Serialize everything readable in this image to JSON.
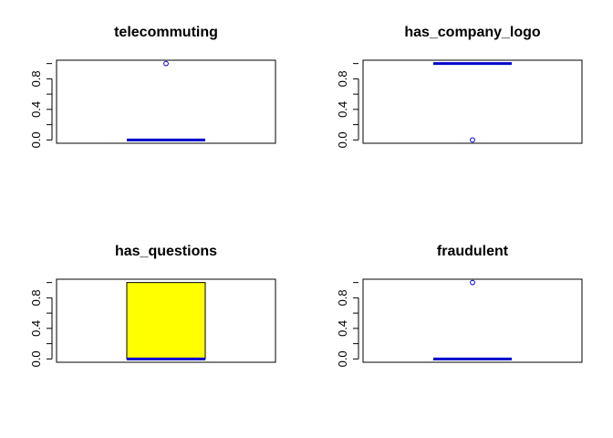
{
  "colors": {
    "box_fill": "#ffff00",
    "median": "#0000cd",
    "outlier": "#0000cd",
    "frame": "#000000"
  },
  "chart_data": [
    {
      "type": "box",
      "title": "telecommuting",
      "ylim": [
        0,
        1
      ],
      "yticks": [
        "0.0",
        "0.4",
        "0.8"
      ],
      "box": {
        "min": 0,
        "q1": 0,
        "median": 0,
        "q3": 0,
        "max": 0
      },
      "outliers": [
        1
      ]
    },
    {
      "type": "box",
      "title": "has_company_logo",
      "ylim": [
        0,
        1
      ],
      "yticks": [
        "0.0",
        "0.4",
        "0.8"
      ],
      "box": {
        "min": 1,
        "q1": 1,
        "median": 1,
        "q3": 1,
        "max": 1
      },
      "outliers": [
        0
      ]
    },
    {
      "type": "box",
      "title": "has_questions",
      "ylim": [
        0,
        1
      ],
      "yticks": [
        "0.0",
        "0.4",
        "0.8"
      ],
      "box": {
        "min": 0,
        "q1": 0,
        "median": 0,
        "q3": 1,
        "max": 1
      },
      "outliers": []
    },
    {
      "type": "box",
      "title": "fraudulent",
      "ylim": [
        0,
        1
      ],
      "yticks": [
        "0.0",
        "0.4",
        "0.8"
      ],
      "box": {
        "min": 0,
        "q1": 0,
        "median": 0,
        "q3": 0,
        "max": 0
      },
      "outliers": [
        1
      ]
    }
  ]
}
